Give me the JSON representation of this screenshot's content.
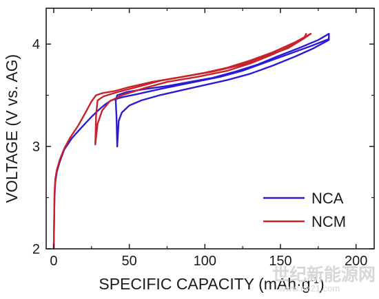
{
  "chart_data": {
    "type": "line",
    "title": "",
    "xlabel": "SPECIFIC CAPACITY (mAh·g",
    "xlabel_sup": "-1",
    "xlabel_close": ")",
    "ylabel": "VOLTAGE (V vs. AG)",
    "xlim": [
      -5,
      212
    ],
    "ylim": [
      2.0,
      4.35
    ],
    "xticks": [
      0,
      50,
      100,
      150,
      200
    ],
    "xtick_labels": [
      "0",
      "50",
      "100",
      "150",
      "200"
    ],
    "yticks": [
      2,
      3,
      4
    ],
    "ytick_labels": [
      "2",
      "3",
      "4"
    ],
    "grid": false,
    "legend_position": "bottom-right",
    "series": [
      {
        "name": "NCA",
        "color": "#2b1bd6",
        "curves": [
          [
            [
              0,
              2.0
            ],
            [
              0.5,
              2.5
            ],
            [
              1,
              2.65
            ],
            [
              2,
              2.75
            ],
            [
              4,
              2.85
            ],
            [
              7,
              2.97
            ],
            [
              12,
              3.08
            ],
            [
              18,
              3.18
            ],
            [
              25,
              3.29
            ],
            [
              30,
              3.36
            ],
            [
              34,
              3.41
            ],
            [
              38,
              3.45
            ],
            [
              45,
              3.48
            ],
            [
              55,
              3.51
            ],
            [
              70,
              3.56
            ],
            [
              90,
              3.62
            ],
            [
              110,
              3.68
            ],
            [
              125,
              3.74
            ],
            [
              140,
              3.82
            ],
            [
              155,
              3.9
            ],
            [
              170,
              3.98
            ],
            [
              182,
              4.05
            ],
            [
              182,
              4.1
            ]
          ],
          [
            [
              182,
              4.1
            ],
            [
              175,
              4.04
            ],
            [
              162,
              3.96
            ],
            [
              148,
              3.88
            ],
            [
              135,
              3.8
            ],
            [
              120,
              3.73
            ],
            [
              105,
              3.67
            ],
            [
              90,
              3.63
            ],
            [
              75,
              3.59
            ],
            [
              60,
              3.56
            ],
            [
              48,
              3.53
            ],
            [
              42,
              3.5
            ],
            [
              41,
              3.45
            ],
            [
              41.5,
              3.3
            ],
            [
              42,
              3.0
            ]
          ],
          [
            [
              42,
              3.0
            ],
            [
              43,
              3.25
            ],
            [
              45,
              3.33
            ],
            [
              50,
              3.4
            ],
            [
              58,
              3.45
            ],
            [
              70,
              3.5
            ],
            [
              85,
              3.55
            ],
            [
              100,
              3.6
            ],
            [
              115,
              3.65
            ],
            [
              130,
              3.71
            ],
            [
              145,
              3.79
            ],
            [
              160,
              3.88
            ],
            [
              172,
              3.96
            ],
            [
              182,
              4.04
            ],
            [
              182,
              4.1
            ]
          ]
        ]
      },
      {
        "name": "NCM",
        "color": "#c8232b",
        "curves": [
          [
            [
              0,
              2.0
            ],
            [
              0.5,
              2.55
            ],
            [
              1,
              2.68
            ],
            [
              2,
              2.77
            ],
            [
              4,
              2.87
            ],
            [
              7,
              2.98
            ],
            [
              11,
              3.09
            ],
            [
              16,
              3.2
            ],
            [
              21,
              3.33
            ],
            [
              25,
              3.44
            ],
            [
              28,
              3.5
            ],
            [
              32,
              3.52
            ],
            [
              40,
              3.54
            ],
            [
              50,
              3.58
            ],
            [
              65,
              3.63
            ],
            [
              85,
              3.68
            ],
            [
              105,
              3.73
            ],
            [
              125,
              3.8
            ],
            [
              140,
              3.88
            ],
            [
              155,
              3.96
            ],
            [
              165,
              4.05
            ],
            [
              170,
              4.1
            ]
          ],
          [
            [
              170,
              4.1
            ],
            [
              160,
              4.02
            ],
            [
              145,
              3.92
            ],
            [
              130,
              3.84
            ],
            [
              115,
              3.77
            ],
            [
              100,
              3.72
            ],
            [
              85,
              3.68
            ],
            [
              70,
              3.64
            ],
            [
              55,
              3.58
            ],
            [
              42,
              3.53
            ],
            [
              33,
              3.49
            ],
            [
              29,
              3.45
            ],
            [
              28,
              3.3
            ],
            [
              27.5,
              3.02
            ]
          ],
          [
            [
              27.5,
              3.02
            ],
            [
              29,
              3.22
            ],
            [
              32,
              3.35
            ],
            [
              37,
              3.44
            ],
            [
              45,
              3.5
            ],
            [
              60,
              3.57
            ],
            [
              75,
              3.63
            ],
            [
              95,
              3.68
            ],
            [
              115,
              3.74
            ],
            [
              130,
              3.81
            ],
            [
              145,
              3.9
            ],
            [
              158,
              3.99
            ],
            [
              166,
              4.07
            ],
            [
              167,
              4.1
            ]
          ]
        ]
      }
    ]
  },
  "watermark": {
    "main": "世纪新能源网",
    "sub": "www.ne21.com"
  }
}
